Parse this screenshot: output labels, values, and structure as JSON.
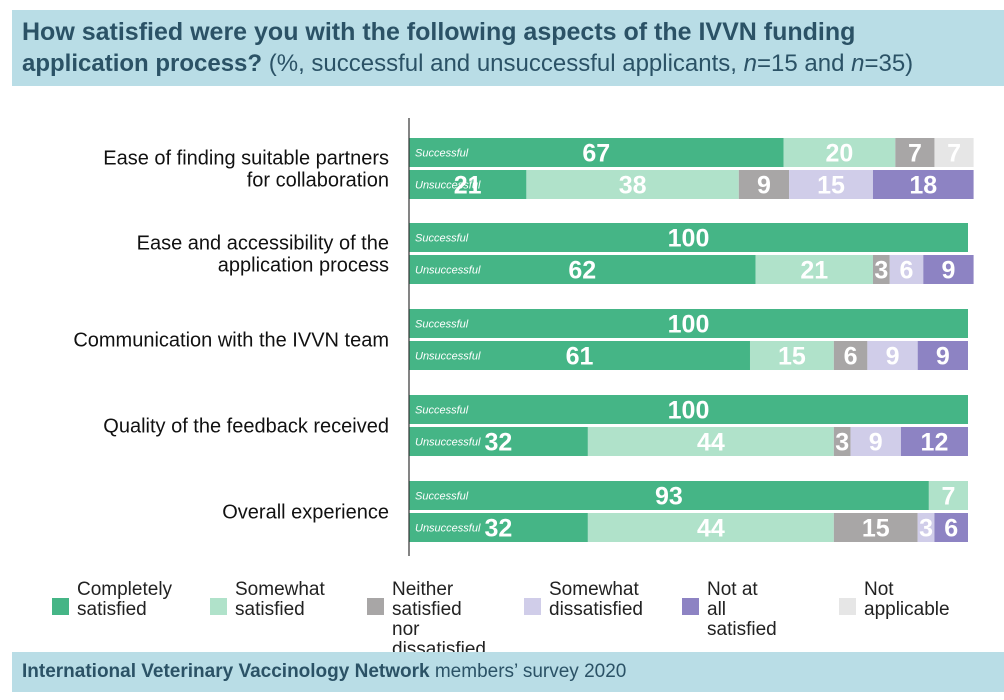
{
  "title": {
    "line1": "How satisfied were you with the following aspects of the IVVN funding",
    "line2_bold": "application process?",
    "line2_a": " (%, successful and unsuccessful applicants, ",
    "n_label1": "n",
    "n_value1": "=15 and ",
    "n_label2": "n",
    "n_value2": "=35)"
  },
  "footer": {
    "bold": "International Veterinary Vaccinology Network",
    "rest": " members’ survey 2020"
  },
  "colors": {
    "completely_satisfied": "#45b586",
    "somewhat_satisfied": "#b0e2ca",
    "neither": "#a8a6a6",
    "somewhat_dissatisfied": "#d0cde9",
    "not_at_all": "#8d83c3",
    "not_applicable": "#e6e6e6"
  },
  "legend": [
    {
      "key": "completely_satisfied",
      "lines": [
        "Completely",
        "satisfied"
      ]
    },
    {
      "key": "somewhat_satisfied",
      "lines": [
        "Somewhat",
        "satisfied"
      ]
    },
    {
      "key": "neither",
      "lines": [
        "Neither",
        "satisfied nor",
        "dissatisfied"
      ]
    },
    {
      "key": "somewhat_dissatisfied",
      "lines": [
        "Somewhat",
        "dissatisfied"
      ]
    },
    {
      "key": "not_at_all",
      "lines": [
        "Not at all",
        "satisfied"
      ]
    },
    {
      "key": "not_applicable",
      "lines": [
        "Not",
        "applicable"
      ]
    }
  ],
  "chart_data": {
    "type": "bar",
    "orientation": "horizontal",
    "stacked": true,
    "scale_max": 100,
    "series": [
      "Completely satisfied",
      "Somewhat satisfied",
      "Neither satisfied nor dissatisfied",
      "Somewhat dissatisfied",
      "Not at all satisfied",
      "Not applicable"
    ],
    "series_keys": [
      "completely_satisfied",
      "somewhat_satisfied",
      "neither",
      "somewhat_dissatisfied",
      "not_at_all",
      "not_applicable"
    ],
    "categories": [
      {
        "label": [
          "Ease of finding suitable partners",
          "for collaboration"
        ],
        "rows": [
          {
            "group": "Successful",
            "values": [
              67,
              20,
              7,
              0,
              0,
              7
            ]
          },
          {
            "group": "Unsuccessful",
            "values": [
              21,
              38,
              9,
              15,
              18,
              0
            ]
          }
        ]
      },
      {
        "label": [
          "Ease and accessibility of the",
          "application process"
        ],
        "rows": [
          {
            "group": "Successful",
            "values": [
              100,
              0,
              0,
              0,
              0,
              0
            ]
          },
          {
            "group": "Unsuccessful",
            "values": [
              62,
              21,
              3,
              6,
              9,
              0
            ]
          }
        ]
      },
      {
        "label": [
          "Communication with the IVVN team"
        ],
        "rows": [
          {
            "group": "Successful",
            "values": [
              100,
              0,
              0,
              0,
              0,
              0
            ]
          },
          {
            "group": "Unsuccessful",
            "values": [
              61,
              15,
              6,
              9,
              9,
              0
            ]
          }
        ]
      },
      {
        "label": [
          "Quality of the feedback received"
        ],
        "rows": [
          {
            "group": "Successful",
            "values": [
              100,
              0,
              0,
              0,
              0,
              0
            ]
          },
          {
            "group": "Unsuccessful",
            "values": [
              32,
              44,
              3,
              9,
              12,
              0
            ]
          }
        ]
      },
      {
        "label": [
          "Overall experience"
        ],
        "rows": [
          {
            "group": "Successful",
            "values": [
              93,
              7,
              0,
              0,
              0,
              0
            ]
          },
          {
            "group": "Unsuccessful",
            "values": [
              32,
              44,
              15,
              3,
              6,
              0
            ]
          }
        ]
      }
    ]
  }
}
